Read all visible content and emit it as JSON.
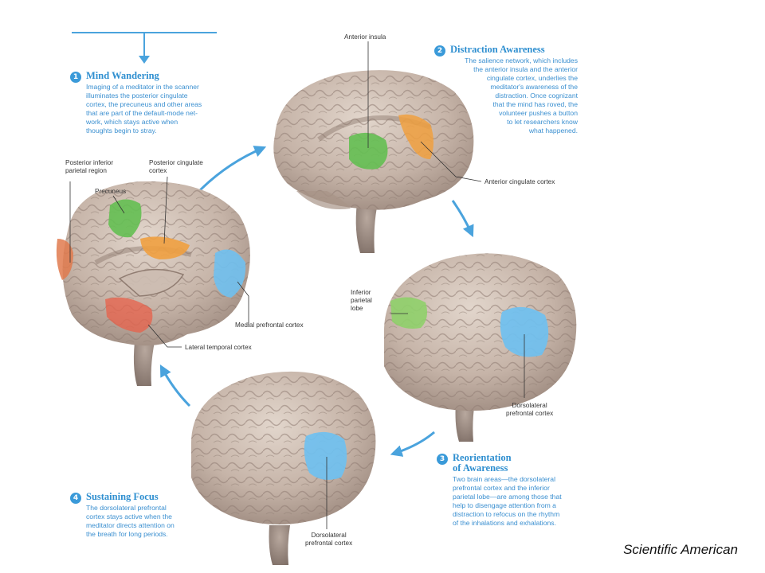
{
  "steps": [
    {
      "number": "1",
      "title": "Mind Wandering",
      "lines": [
        "Imaging of a meditator in the scanner",
        "illuminates the posterior cingulate",
        "cortex, the precuneus and other areas",
        "that are part of the default-mode net-",
        "work, which stays active when",
        "thoughts begin to stray."
      ]
    },
    {
      "number": "2",
      "title": "Distraction Awareness",
      "lines": [
        "The salience network, which includes",
        "the anterior insula and the anterior",
        "cingulate cortex, underlies the",
        "meditator's awareness of the",
        "distraction. Once cognizant",
        "that the mind has roved, the",
        "volunteer pushes a button",
        "to let researchers know",
        "what happened."
      ]
    },
    {
      "number": "3",
      "title_lines": [
        "Reorientation",
        "of Awareness"
      ],
      "lines": [
        "Two brain areas—the dorsolateral",
        "prefrontal cortex and the inferior",
        "parietal lobe—are among those that",
        "help to disengage attention from a",
        "distraction to refocus on the rhythm",
        "of the inhalations and exhalations."
      ]
    },
    {
      "number": "4",
      "title": "Sustaining Focus",
      "lines": [
        "The dorsolateral prefrontal",
        "cortex stays active when the",
        "meditator directs attention on",
        "the breath for long periods."
      ]
    }
  ],
  "labels": {
    "posterior_inferior_parietal": [
      "Posterior inferior",
      "parietal region"
    ],
    "precuneus": "Precuneus",
    "posterior_cingulate": [
      "Posterior cingulate",
      "cortex"
    ],
    "medial_prefrontal": "Medial prefrontal cortex",
    "lateral_temporal": "Lateral temporal cortex",
    "anterior_insula": "Anterior insula",
    "anterior_cingulate": "Anterior cingulate cortex",
    "inferior_parietal": [
      "Inferior",
      "parietal",
      "lobe"
    ],
    "dorsolateral_prefrontal_3": [
      "Dorsolateral",
      "prefrontal cortex"
    ],
    "dorsolateral_prefrontal_4": [
      "Dorsolateral",
      "prefrontal cortex"
    ]
  },
  "credit": "Scientific American",
  "colors": {
    "accent_blue": "#3a9ad9",
    "region_green": "#6cc25a",
    "region_orange": "#f0a040",
    "region_blue": "#6fc0f0",
    "region_red": "#e8604a",
    "brain_tone": "#c9b8ad"
  }
}
